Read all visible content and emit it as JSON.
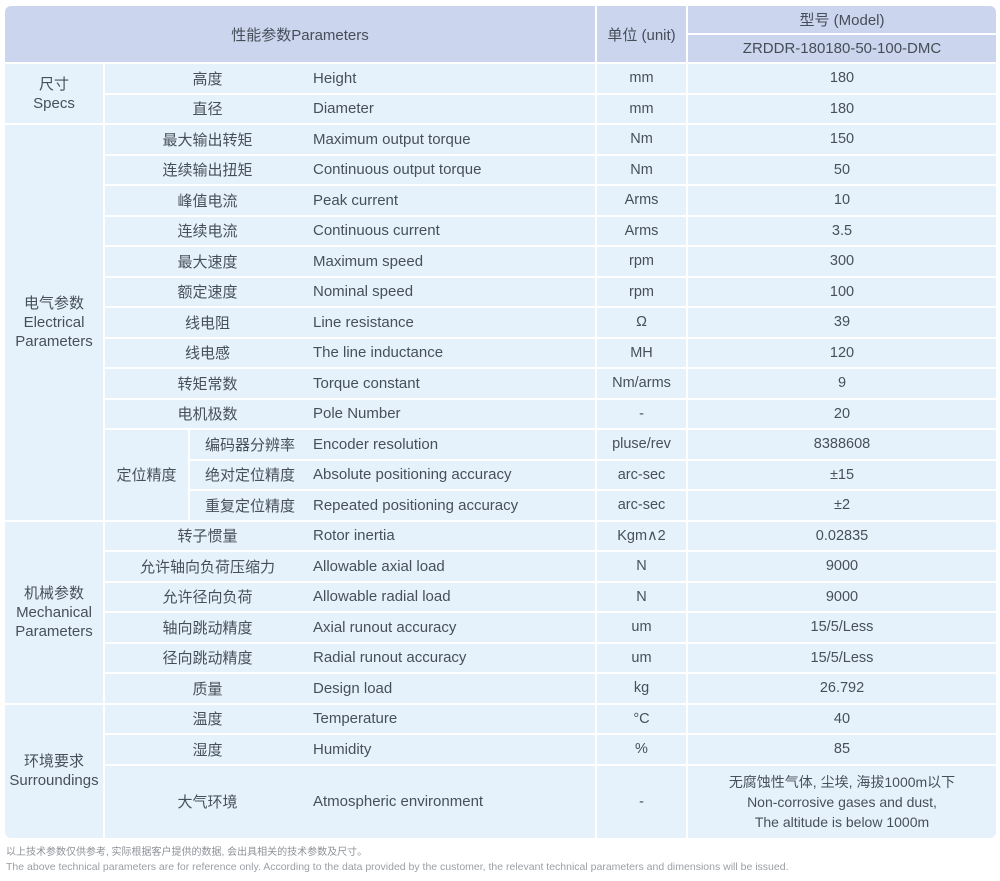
{
  "colors": {
    "header_bg": "#ccd5ee",
    "cell_bg": "#e6f2fb"
  },
  "header": {
    "parameters_label": "性能参数Parameters",
    "unit_label": "单位 (unit)",
    "model_label": "型号 (Model)",
    "model_value": "ZRDDR-180180-50-100-DMC"
  },
  "sections": [
    {
      "cn": "尺寸",
      "en": "Specs",
      "rows": [
        {
          "cn": "高度",
          "en": "Height",
          "unit": "mm",
          "value": "180"
        },
        {
          "cn": "直径",
          "en": "Diameter",
          "unit": "mm",
          "value": "180"
        }
      ]
    },
    {
      "cn": "电气参数",
      "en": "Electrical Parameters",
      "rows": [
        {
          "cn": "最大输出转矩",
          "en": "Maximum output torque",
          "unit": "Nm",
          "value": "150"
        },
        {
          "cn": "连续输出扭矩",
          "en": "Continuous output torque",
          "unit": "Nm",
          "value": "50"
        },
        {
          "cn": "峰值电流",
          "en": "Peak current",
          "unit": "Arms",
          "value": "10"
        },
        {
          "cn": "连续电流",
          "en": "Continuous current",
          "unit": "Arms",
          "value": "3.5"
        },
        {
          "cn": "最大速度",
          "en": "Maximum speed",
          "unit": "rpm",
          "value": "300"
        },
        {
          "cn": "额定速度",
          "en": "Nominal speed",
          "unit": "rpm",
          "value": "100"
        },
        {
          "cn": "线电阻",
          "en": "Line resistance",
          "unit": "Ω",
          "value": "39"
        },
        {
          "cn": "线电感",
          "en": "The line inductance",
          "unit": "MH",
          "value": "120"
        },
        {
          "cn": "转矩常数",
          "en": "Torque constant",
          "unit": "Nm/arms",
          "value": "9"
        },
        {
          "cn": "电机极数",
          "en": "Pole Number",
          "unit": "-",
          "value": "20"
        }
      ],
      "group": {
        "cn": "定位精度",
        "rows": [
          {
            "cn": "编码器分辨率",
            "en": "Encoder resolution",
            "unit": "pluse/rev",
            "value": "8388608"
          },
          {
            "cn": "绝对定位精度",
            "en": "Absolute positioning accuracy",
            "unit": "arc-sec",
            "value": "±15"
          },
          {
            "cn": "重复定位精度",
            "en": "Repeated positioning accuracy",
            "unit": "arc-sec",
            "value": "±2"
          }
        ]
      }
    },
    {
      "cn": "机械参数",
      "en": "Mechanical Parameters",
      "rows": [
        {
          "cn": "转子惯量",
          "en": "Rotor inertia",
          "unit": "Kgm∧2",
          "value": "0.02835"
        },
        {
          "cn": "允许轴向负荷压缩力",
          "en": "Allowable axial load",
          "unit": "N",
          "value": "9000"
        },
        {
          "cn": "允许径向负荷",
          "en": "Allowable radial load",
          "unit": "N",
          "value": "9000"
        },
        {
          "cn": "轴向跳动精度",
          "en": "Axial runout accuracy",
          "unit": "um",
          "value": "15/5/Less"
        },
        {
          "cn": "径向跳动精度",
          "en": "Radial runout accuracy",
          "unit": "um",
          "value": "15/5/Less"
        },
        {
          "cn": "质量",
          "en": "Design load",
          "unit": "kg",
          "value": "26.792"
        }
      ]
    },
    {
      "cn": "环境要求",
      "en": "Surroundings",
      "rows": [
        {
          "cn": "温度",
          "en": "Temperature",
          "unit": "°C",
          "value": "40"
        },
        {
          "cn": "湿度",
          "en": "Humidity",
          "unit": "%",
          "value": "85"
        }
      ],
      "atmo": {
        "cn": "大气环境",
        "en": "Atmospheric environment",
        "unit": "-",
        "line1": "无腐蚀性气体, 尘埃, 海拔1000m以下",
        "line2": "Non-corrosive gases and dust,",
        "line3": "The altitude is below 1000m"
      }
    }
  ],
  "footnote": {
    "cn": "以上技术参数仅供参考, 实际根据客户提供的数据, 会出具相关的技术参数及尺寸。",
    "en": "The above technical parameters are for reference only. According to the data provided by the customer, the relevant technical parameters and dimensions will be issued."
  }
}
